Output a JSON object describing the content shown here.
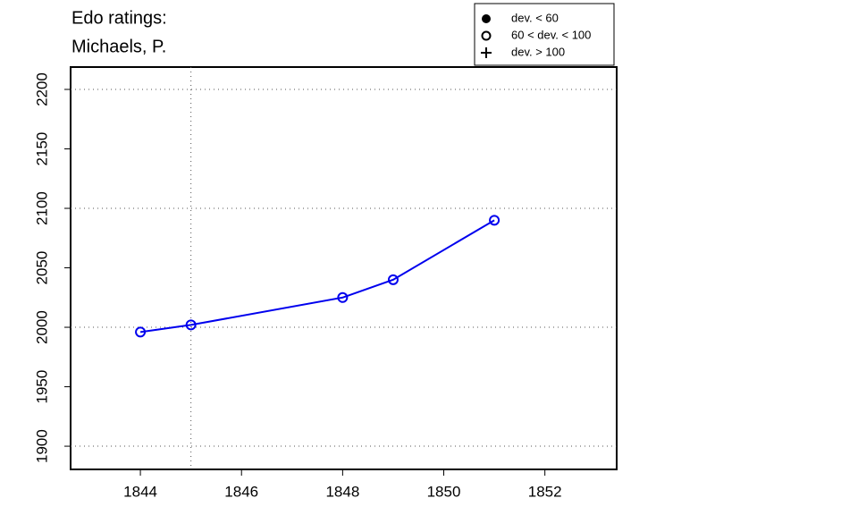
{
  "chart_data": {
    "type": "line",
    "title": "Edo ratings:",
    "subtitle": "Michaels, P.",
    "x": [
      1844,
      1845,
      1848,
      1849,
      1851
    ],
    "series": [
      {
        "color": "#0000ee",
        "values": [
          1996,
          2002,
          2025,
          2040,
          2090
        ]
      }
    ],
    "xlim": [
      1842.62,
      1853.42
    ],
    "ylim": [
      1880.5,
      2218.8
    ],
    "xticks": [
      1844,
      1846,
      1848,
      1850,
      1852
    ],
    "yticks": [
      1900,
      1950,
      2000,
      2050,
      2100,
      2150,
      2200
    ],
    "hlines": [
      1900,
      2000,
      2100,
      2200
    ],
    "vlines": [
      1845
    ],
    "legend": {
      "position": "top-right",
      "entries": [
        "dev. < 60",
        "60 < dev. < 100",
        "dev. > 100"
      ]
    }
  }
}
